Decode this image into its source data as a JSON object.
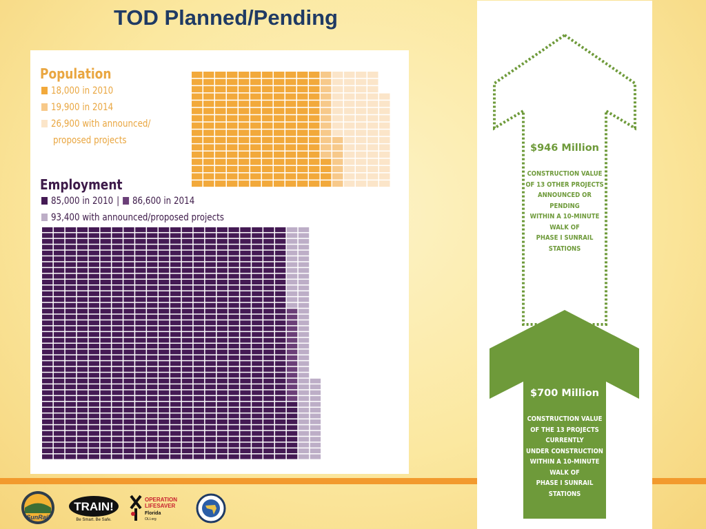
{
  "slide": {
    "title": "TOD Planned/Pending"
  },
  "population": {
    "title": "Population",
    "legend": [
      {
        "label": "18,000 in 2010",
        "color": "#f2a93b",
        "value": 18000
      },
      {
        "label": "19,900 in 2014",
        "color": "#f7c98a",
        "value": 19900
      },
      {
        "label": "26,900 with announced/",
        "label2": "proposed projects",
        "color": "#fbe5c9",
        "value": 26900
      }
    ]
  },
  "employment": {
    "title": "Employment",
    "legend": [
      {
        "label": "85,000 in 2010",
        "color": "#441a54",
        "value": 85000
      },
      {
        "label": "86,600 in 2014",
        "color": "#6b3f78",
        "value": 86600
      },
      {
        "label": "93,400 with announced/proposed projects",
        "color": "#bdaec7",
        "value": 93400
      }
    ]
  },
  "arrows": {
    "upper": {
      "amount": "$946 Million",
      "description": [
        "CONSTRUCTION VALUE",
        "OF 13 OTHER PROJECTS",
        "ANNOUNCED OR",
        "PENDING",
        "WITHIN A 10-MINUTE",
        "WALK OF",
        "PHASE I SUNRAIL",
        "STATIONS"
      ],
      "color": "#6e9a3a"
    },
    "lower": {
      "amount": "$700 Million",
      "description": [
        "CONSTRUCTION VALUE",
        "OF THE 13 PROJECTS",
        "CURRENTLY",
        "UNDER CONSTRUCTION",
        "WITHIN A 10-MINUTE",
        "WALK OF",
        "PHASE I SUNRAIL",
        "STATIONS"
      ],
      "color": "#6e9a3a"
    }
  },
  "logos": {
    "sunrail": "SunRail",
    "train": "TRAIN!",
    "train_tag": "Be Smart. Be Safe.",
    "ols_line1": "OPERATION",
    "ols_line2": "LIFESAVER",
    "ols_state": "Florida",
    "ols_url": "OLI.org"
  }
}
